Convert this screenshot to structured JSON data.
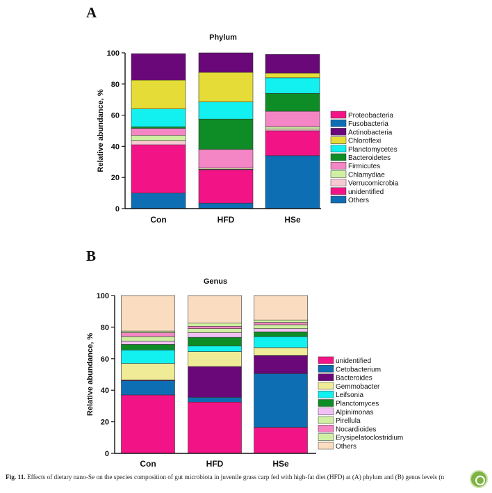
{
  "panel_a_letter": "A",
  "panel_b_letter": "B",
  "caption": {
    "label": "Fig. 11.",
    "text": "Effects of dietary nano-Se on the species composition of gut microbiota in juvenile grass carp fed with high-fat diet (HFD) at (A) phylum and (B) genus levels (n"
  },
  "badge_icon": "leaf-badge-icon",
  "chart_data": [
    {
      "type": "bar",
      "stacked": true,
      "title": "Phylum",
      "ylabel": "Relative abundance, %",
      "xlabel": "",
      "ylim": [
        0,
        100
      ],
      "yticks": [
        "0",
        "20",
        "40",
        "60",
        "80",
        "100"
      ],
      "categories": [
        "Con",
        "HFD",
        "HSe"
      ],
      "legend_position": "right",
      "series": [
        {
          "name": "Others",
          "color": "#0e6eb4",
          "values": [
            10,
            3.5,
            34
          ]
        },
        {
          "name": "unidentified",
          "color": "#f21487",
          "values": [
            31,
            21.5,
            16
          ]
        },
        {
          "name": "Verrucomicrobia",
          "color": "#f8c9d2",
          "values": [
            2.5,
            0.3,
            1
          ]
        },
        {
          "name": "Chlamydiae",
          "color": "#cff0a2",
          "values": [
            3.5,
            0.7,
            1.5
          ]
        },
        {
          "name": "Firmicutes",
          "color": "#f586c5",
          "values": [
            4.5,
            12,
            10
          ]
        },
        {
          "name": "Bacteroidetes",
          "color": "#0e8c25",
          "values": [
            1,
            19.5,
            11.5
          ]
        },
        {
          "name": "Planctomycetes",
          "color": "#12f0f0",
          "values": [
            11.5,
            11,
            10
          ]
        },
        {
          "name": "Chloroflexi",
          "color": "#e6dc37",
          "values": [
            18.5,
            19,
            3
          ]
        },
        {
          "name": "Actinobacteria",
          "color": "#6a087a",
          "values": [
            17,
            12.5,
            12
          ]
        },
        {
          "name": "Fusobacteria",
          "color": "#0e6eb4",
          "values": [
            0,
            0,
            0
          ]
        },
        {
          "name": "Proteobacteria",
          "color": "#f21487",
          "values": [
            0,
            0,
            0
          ]
        }
      ],
      "legend_order": [
        "Proteobacteria",
        "Fusobacteria",
        "Actinobacteria",
        "Chloroflexi",
        "Planctomycetes",
        "Bacteroidetes",
        "Firmicutes",
        "Chlamydiae",
        "Verrucomicrobia",
        "unidentified",
        "Others"
      ]
    },
    {
      "type": "bar",
      "stacked": true,
      "title": "Genus",
      "ylabel": "Relative abundance, %",
      "xlabel": "",
      "ylim": [
        0,
        100
      ],
      "yticks": [
        "0",
        "20",
        "40",
        "60",
        "80",
        "100"
      ],
      "categories": [
        "Con",
        "HFD",
        "HSe"
      ],
      "legend_position": "right",
      "series": [
        {
          "name": "unidentified",
          "color": "#f21487",
          "values": [
            37,
            32.5,
            16.5
          ]
        },
        {
          "name": "Cetobacterium",
          "color": "#0e6eb4",
          "values": [
            9,
            3,
            34
          ]
        },
        {
          "name": "Bacteroides",
          "color": "#6a087a",
          "values": [
            0.5,
            19.5,
            11.5
          ]
        },
        {
          "name": "Gemmobacter",
          "color": "#f0eb96",
          "values": [
            10.5,
            9.5,
            5
          ]
        },
        {
          "name": "Leifsonia",
          "color": "#12f0f0",
          "values": [
            8.5,
            3.5,
            7
          ]
        },
        {
          "name": "Planctomyces",
          "color": "#0e8c25",
          "values": [
            3.5,
            5.5,
            3
          ]
        },
        {
          "name": "Alpinimonas",
          "color": "#f3c0f5",
          "values": [
            2,
            3,
            2
          ]
        },
        {
          "name": "Pirellula",
          "color": "#cff0a2",
          "values": [
            3,
            2.5,
            2.5
          ]
        },
        {
          "name": "Nocardioides",
          "color": "#f586c5",
          "values": [
            2.5,
            1.5,
            1.5
          ]
        },
        {
          "name": "Erysipelatoclostridium",
          "color": "#cff0a2",
          "values": [
            1,
            2,
            1.5
          ]
        },
        {
          "name": "Others",
          "color": "#fadcc0",
          "values": [
            22.5,
            17.5,
            15.5
          ]
        }
      ],
      "legend_order": [
        "unidentified",
        "Cetobacterium",
        "Bacteroides",
        "Gemmobacter",
        "Leifsonia",
        "Planctomyces",
        "Alpinimonas",
        "Pirellula",
        "Nocardioides",
        "Erysipelatoclostridium",
        "Others"
      ]
    }
  ]
}
